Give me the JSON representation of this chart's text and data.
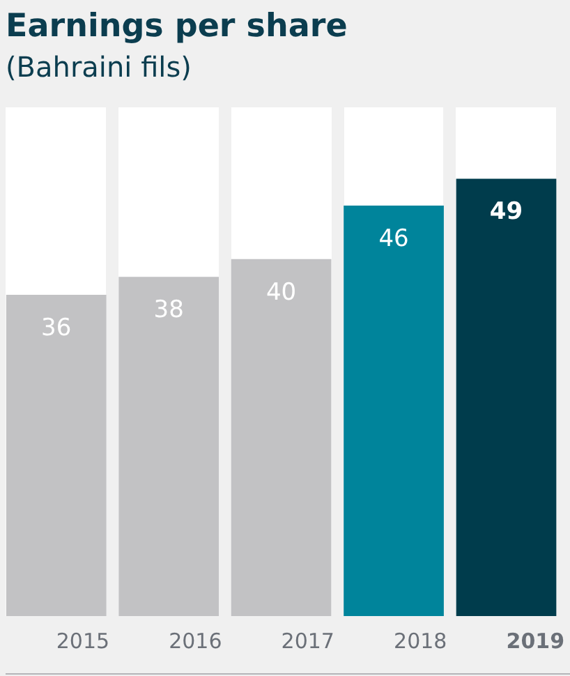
{
  "chart_data": {
    "type": "bar",
    "title": "Earnings per share",
    "subtitle": "(Bahraini fils)",
    "categories": [
      "2015",
      "2016",
      "2017",
      "2018",
      "2019"
    ],
    "values": [
      36,
      38,
      40,
      46,
      49
    ],
    "colors": [
      "#c2c2c4",
      "#c2c2c4",
      "#c2c2c4",
      "#00849b",
      "#003c4c"
    ],
    "ylim": [
      0,
      57
    ],
    "data_labels": true,
    "grid": false,
    "legend": false,
    "tick_labels": "x"
  }
}
